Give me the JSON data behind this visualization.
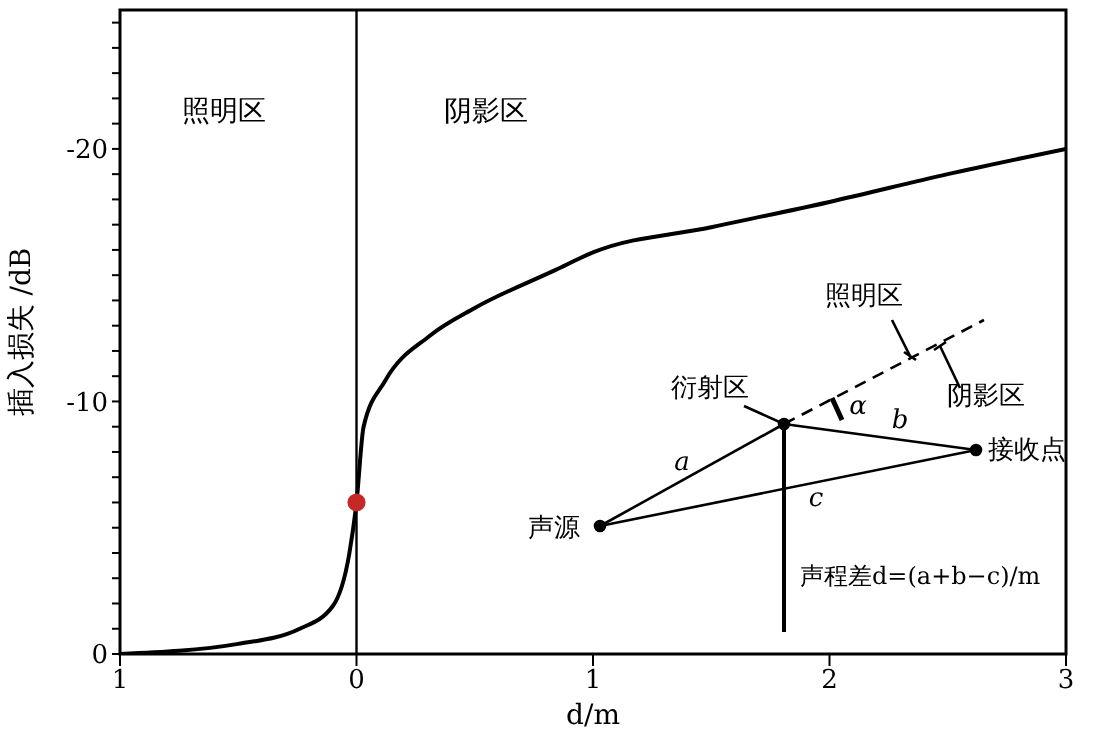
{
  "chart_data": {
    "type": "line",
    "xlabel": "d/m",
    "ylabel": "插入损失 /dB",
    "xlim": [
      -1,
      3
    ],
    "ylim": [
      0,
      -25.5
    ],
    "xticks": [
      {
        "value": -1,
        "label": "1"
      },
      0,
      1,
      2,
      3
    ],
    "yticks": [
      0,
      {
        "value": -1,
        "label": null
      },
      {
        "value": -2,
        "label": null
      },
      {
        "value": -3,
        "label": null
      },
      {
        "value": -4,
        "label": null
      },
      {
        "value": -5,
        "label": null
      },
      {
        "value": -6,
        "label": null
      },
      {
        "value": -7,
        "label": null
      },
      {
        "value": -8,
        "label": null
      },
      {
        "value": -9,
        "label": null
      },
      -10,
      {
        "value": -11,
        "label": null
      },
      {
        "value": -12,
        "label": null
      },
      {
        "value": -13,
        "label": null
      },
      {
        "value": -14,
        "label": null
      },
      {
        "value": -15,
        "label": null
      },
      {
        "value": -16,
        "label": null
      },
      {
        "value": -17,
        "label": null
      },
      {
        "value": -18,
        "label": null
      },
      {
        "value": -19,
        "label": null
      },
      -20,
      {
        "value": -21,
        "label": null
      },
      {
        "value": -22,
        "label": null
      },
      {
        "value": -23,
        "label": null
      },
      {
        "value": -24,
        "label": null
      },
      {
        "value": -25,
        "label": null
      }
    ],
    "series": [
      {
        "color": "#000000",
        "marker": "none",
        "x": [
          -1,
          -0.5,
          -0.24,
          -0.1,
          -0.03,
          0,
          0.03,
          0.12,
          0.31,
          0.5,
          0.84,
          1,
          1.5,
          2,
          2.5,
          3
        ],
        "values": [
          0,
          -0.4,
          -1,
          -1.9,
          -4,
          -6,
          -9,
          -10.8,
          -12.6,
          -13.7,
          -15.2,
          -15.9,
          -16.9,
          -17.9,
          -19,
          -20
        ]
      },
      {
        "type": "scatter",
        "color": "#c62828",
        "marker": "circle",
        "x": [
          0
        ],
        "values": [
          -6
        ]
      }
    ],
    "ref_lines": [
      {
        "axis": "x",
        "value": 0,
        "color": "#000000"
      }
    ],
    "annotations": [
      "照明区",
      "阴影区",
      "照明区",
      "阴影区",
      "衍射区",
      "α",
      "a",
      "b",
      "c",
      "声源",
      "接收点",
      "声程差d=(a+b−c)/m"
    ]
  }
}
